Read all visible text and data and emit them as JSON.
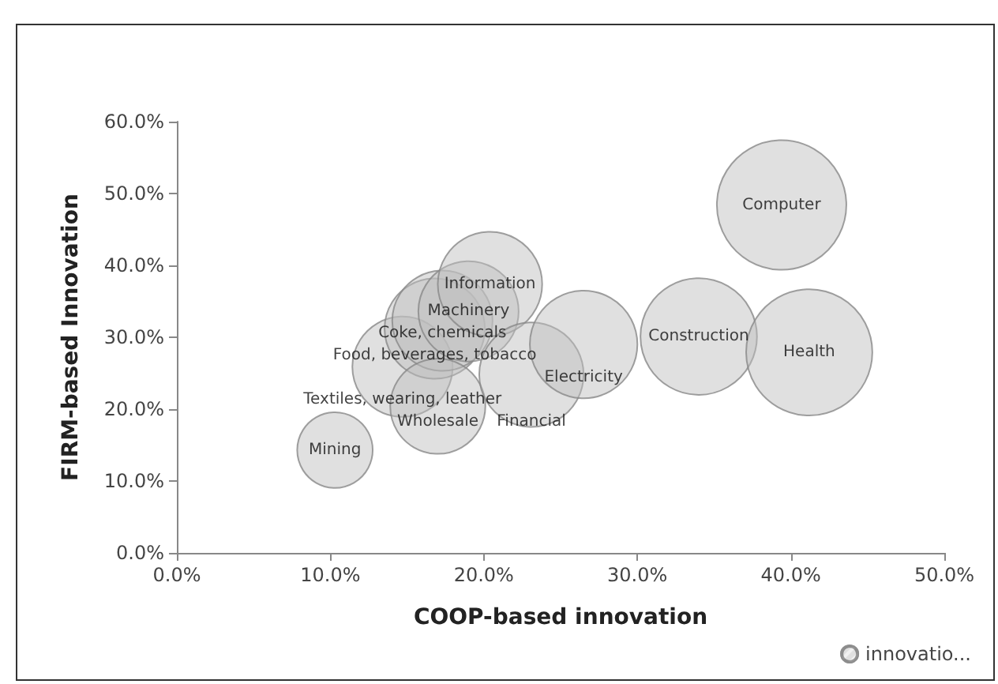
{
  "chart_data": {
    "type": "bubble",
    "xlabel": "COOP-based innovation",
    "ylabel": "FIRM-based Innovation",
    "xlim": [
      0,
      50
    ],
    "xticks": [
      {
        "value": 0,
        "label": "0.0%"
      },
      {
        "value": 10,
        "label": "10.0%"
      },
      {
        "value": 20,
        "label": "20.0%"
      },
      {
        "value": 30,
        "label": "30.0%"
      },
      {
        "value": 40,
        "label": "40.0%"
      },
      {
        "value": 50,
        "label": "50.0%"
      }
    ],
    "ylim": [
      0,
      60
    ],
    "yticks": [
      {
        "value": 0,
        "label": "0.0%"
      },
      {
        "value": 10,
        "label": "10.0%"
      },
      {
        "value": 20,
        "label": "20.0%"
      },
      {
        "value": 30,
        "label": "30.0%"
      },
      {
        "value": 40,
        "label": "40.0%"
      },
      {
        "value": 50,
        "label": "50.0%"
      },
      {
        "value": 60,
        "label": "60.0%"
      }
    ],
    "grid": false,
    "legend": "bottom right",
    "series": [
      {
        "name": "innovatio...",
        "color": "#bfbfbf",
        "x": [
          10.3,
          14.7,
          16.8,
          17.3,
          19.0,
          20.4,
          17.0,
          23.1,
          26.5,
          34.0,
          39.4,
          41.2
        ],
        "values": [
          14.3,
          25.9,
          31.2,
          32.3,
          33.6,
          37.4,
          20.4,
          24.8,
          29.0,
          30.1,
          48.4,
          27.9
        ],
        "sizes": [
          0.34,
          0.6,
          0.6,
          0.6,
          0.6,
          0.65,
          0.54,
          0.65,
          0.69,
          0.81,
          1,
          0.95
        ],
        "value_labels": [
          "Mining",
          "Textiles, wearing, leather",
          "Food, beverages, tobacco",
          "Coke, chemicals",
          "Machinery",
          "Information",
          "Wholesale",
          "Financial",
          "Electricity",
          "Construction",
          "Computer",
          "Health"
        ]
      }
    ]
  }
}
